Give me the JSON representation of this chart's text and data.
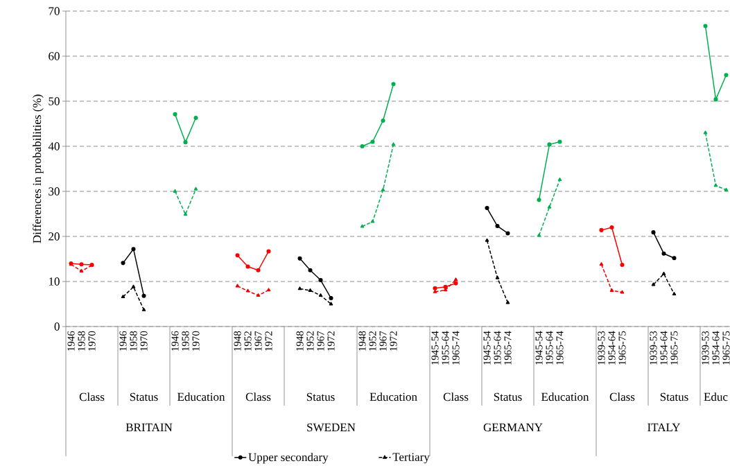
{
  "chart_data": {
    "type": "line",
    "ylabel": "Differences in probabilities (%)",
    "categories": [
      "1946",
      "1958",
      "1970",
      null,
      null,
      "1946",
      "1958",
      "1970",
      null,
      null,
      "1946",
      "1958",
      "1970",
      null,
      null,
      null,
      "1948",
      "1952",
      "1967",
      "1972",
      null,
      null,
      "1948",
      "1952",
      "1967",
      "1972",
      null,
      null,
      "1948",
      "1952",
      "1967",
      "1972",
      null,
      null,
      null,
      "1945-54",
      "1955-64",
      "1965-74",
      null,
      null,
      "1945-54",
      "1955-64",
      "1965-74",
      null,
      null,
      "1945-54",
      "1955-64",
      "1965-74",
      null,
      null,
      null,
      "1939-53",
      "1954-64",
      "1965-75",
      null,
      null,
      "1939-53",
      "1954-64",
      "1965-75",
      null,
      null,
      "1939-53",
      "1954-64",
      "1965-75"
    ],
    "series": [
      {
        "name": "Upper secondary",
        "color": "#000000",
        "marker": "circle",
        "line_style": "solid",
        "values": [
          null,
          null,
          null,
          null,
          null,
          14.1,
          17.2,
          6.8,
          null,
          null,
          null,
          null,
          null,
          null,
          null,
          null,
          null,
          null,
          null,
          null,
          null,
          null,
          15.1,
          12.5,
          10.3,
          6.3,
          null,
          null,
          null,
          null,
          null,
          null,
          null,
          null,
          null,
          null,
          null,
          null,
          null,
          null,
          26.3,
          22.3,
          20.7,
          null,
          null,
          null,
          null,
          null,
          null,
          null,
          null,
          null,
          null,
          null,
          null,
          null,
          20.9,
          16.2,
          15.2,
          null,
          null,
          null,
          null,
          null
        ]
      },
      {
        "name": "Tertiary",
        "color": "#000000",
        "marker": "triangle",
        "line_style": "dashed",
        "values": [
          null,
          null,
          null,
          null,
          null,
          6.6,
          8.8,
          3.7,
          null,
          null,
          null,
          null,
          null,
          null,
          null,
          null,
          null,
          null,
          null,
          null,
          null,
          null,
          8.4,
          8.0,
          6.9,
          5.0,
          null,
          null,
          null,
          null,
          null,
          null,
          null,
          null,
          null,
          null,
          null,
          null,
          null,
          null,
          19.1,
          10.8,
          5.3,
          null,
          null,
          null,
          null,
          null,
          null,
          null,
          null,
          null,
          null,
          null,
          null,
          null,
          9.3,
          11.7,
          7.2,
          null,
          null,
          null,
          null,
          null
        ]
      },
      {
        "color": "#ff0000",
        "marker": "circle",
        "line_style": "solid",
        "values": [
          14.0,
          13.8,
          13.7,
          null,
          null,
          null,
          null,
          null,
          null,
          null,
          null,
          null,
          null,
          null,
          null,
          null,
          15.8,
          13.3,
          12.5,
          16.7,
          null,
          null,
          null,
          null,
          null,
          null,
          null,
          null,
          null,
          null,
          null,
          null,
          null,
          null,
          null,
          8.5,
          8.8,
          9.6,
          null,
          null,
          null,
          null,
          null,
          null,
          null,
          null,
          null,
          null,
          null,
          null,
          null,
          21.4,
          22.0,
          13.7,
          null,
          null,
          null,
          null,
          null,
          null,
          null,
          null,
          null,
          null
        ]
      },
      {
        "color": "#00b050",
        "marker": "circle",
        "line_style": "solid",
        "values": [
          null,
          null,
          null,
          null,
          null,
          null,
          null,
          null,
          null,
          null,
          47.1,
          40.9,
          46.3,
          null,
          null,
          null,
          null,
          null,
          null,
          null,
          null,
          null,
          null,
          null,
          null,
          null,
          null,
          null,
          40.0,
          41.0,
          45.7,
          53.8,
          null,
          null,
          null,
          null,
          null,
          null,
          null,
          null,
          null,
          null,
          null,
          null,
          null,
          28.1,
          40.4,
          41.0,
          null,
          null,
          null,
          null,
          null,
          null,
          null,
          null,
          null,
          null,
          null,
          null,
          null,
          66.7,
          50.4,
          55.8
        ]
      },
      {
        "color": "#f20000",
        "marker": "triangle",
        "line_style": "dashed",
        "values": [
          13.8,
          12.3,
          13.6,
          null,
          null,
          null,
          null,
          null,
          null,
          null,
          null,
          null,
          null,
          null,
          null,
          null,
          9.0,
          7.9,
          6.9,
          8.1,
          null,
          null,
          null,
          null,
          null,
          null,
          null,
          null,
          null,
          null,
          null,
          null,
          null,
          null,
          null,
          7.7,
          8.1,
          10.4,
          null,
          null,
          null,
          null,
          null,
          null,
          null,
          null,
          null,
          null,
          null,
          null,
          null,
          13.8,
          8.0,
          7.6,
          null,
          null,
          null,
          null,
          null,
          null,
          null,
          null,
          null,
          null
        ]
      },
      {
        "color": "#00b050",
        "marker": "triangle",
        "line_style": "dashed",
        "values": [
          null,
          null,
          null,
          null,
          null,
          null,
          null,
          null,
          null,
          null,
          30.0,
          24.9,
          30.5,
          null,
          null,
          null,
          null,
          null,
          null,
          null,
          null,
          null,
          null,
          null,
          null,
          null,
          null,
          null,
          22.2,
          23.3,
          30.3,
          40.4,
          null,
          null,
          null,
          null,
          null,
          null,
          null,
          null,
          null,
          null,
          null,
          null,
          null,
          20.2,
          26.5,
          32.6,
          null,
          null,
          null,
          null,
          null,
          null,
          null,
          null,
          null,
          null,
          null,
          null,
          null,
          43.0,
          31.3,
          30.3
        ]
      }
    ],
    "ylim": [
      0,
      70
    ],
    "yticks": [
      0,
      10,
      20,
      30,
      40,
      50,
      60,
      70
    ],
    "grid": "y",
    "legend": "bottom",
    "annotations": [
      "Class",
      "Status",
      "Education",
      "Class",
      "Status",
      "Education",
      "Class",
      "Status",
      "Education",
      "Class",
      "Status",
      "Educ",
      "BRITAIN",
      "SWEDEN",
      "GERMANY",
      "ITALY"
    ]
  }
}
